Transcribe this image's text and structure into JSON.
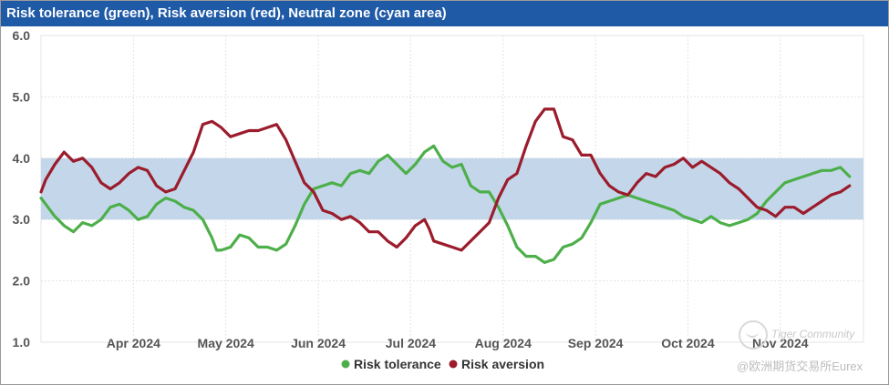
{
  "chart_data": {
    "type": "line",
    "title": "Risk tolerance (green), Risk aversion (red), Neutral zone (cyan area)",
    "xlabel": "",
    "ylabel": "",
    "ylim": [
      1.0,
      6.0
    ],
    "yticks": [
      "1.0",
      "2.0",
      "3.0",
      "4.0",
      "5.0",
      "6.0"
    ],
    "xlim": [
      0,
      8.9
    ],
    "xtick_labels": [
      "Apr 2024",
      "May 2024",
      "Jun 2024",
      "Jul 2024",
      "Aug 2024",
      "Sep 2024",
      "Oct 2024",
      "Nov 2024"
    ],
    "xtick_positions": [
      1,
      2,
      3,
      4,
      5,
      6,
      7,
      8
    ],
    "neutral_zone": [
      3.0,
      4.0
    ],
    "colors": {
      "tolerance": "#4daf4a",
      "aversion": "#9b1c2c",
      "zone": "#c4d7ea",
      "title_bg": "#1f5aa6"
    },
    "legend": {
      "position": "bottom",
      "entries": [
        "Risk tolerance",
        "Risk aversion"
      ]
    },
    "series": [
      {
        "name": "Risk tolerance",
        "x": [
          0,
          0.05,
          0.15,
          0.25,
          0.35,
          0.45,
          0.55,
          0.65,
          0.75,
          0.85,
          0.95,
          1.05,
          1.15,
          1.25,
          1.35,
          1.45,
          1.55,
          1.65,
          1.75,
          1.85,
          1.9,
          1.95,
          2.05,
          2.15,
          2.25,
          2.35,
          2.45,
          2.55,
          2.65,
          2.75,
          2.85,
          2.95,
          3.05,
          3.15,
          3.25,
          3.35,
          3.45,
          3.55,
          3.65,
          3.75,
          3.85,
          3.95,
          4.05,
          4.15,
          4.2,
          4.25,
          4.35,
          4.45,
          4.55,
          4.65,
          4.75,
          4.85,
          4.95,
          5.05,
          5.15,
          5.25,
          5.35,
          5.45,
          5.55,
          5.65,
          5.75,
          5.85,
          5.95,
          6.05,
          6.15,
          6.25,
          6.35,
          6.45,
          6.55,
          6.65,
          6.75,
          6.85,
          6.95,
          7.05,
          7.15,
          7.25,
          7.35,
          7.45,
          7.55,
          7.65,
          7.75,
          7.85,
          7.95,
          8.05,
          8.15,
          8.25,
          8.35,
          8.45,
          8.55,
          8.65,
          8.75
        ],
        "values": [
          3.35,
          3.25,
          3.05,
          2.9,
          2.8,
          2.95,
          2.9,
          3.0,
          3.2,
          3.25,
          3.15,
          3.0,
          3.05,
          3.25,
          3.35,
          3.3,
          3.2,
          3.15,
          3.0,
          2.7,
          2.5,
          2.5,
          2.55,
          2.75,
          2.7,
          2.55,
          2.55,
          2.5,
          2.6,
          2.9,
          3.25,
          3.5,
          3.55,
          3.6,
          3.55,
          3.75,
          3.8,
          3.75,
          3.95,
          4.05,
          3.9,
          3.75,
          3.9,
          4.1,
          4.15,
          4.2,
          3.95,
          3.85,
          3.9,
          3.55,
          3.45,
          3.45,
          3.2,
          2.9,
          2.55,
          2.4,
          2.4,
          2.3,
          2.35,
          2.55,
          2.6,
          2.7,
          2.95,
          3.25,
          3.3,
          3.35,
          3.4,
          3.35,
          3.3,
          3.25,
          3.2,
          3.15,
          3.05,
          3.0,
          2.95,
          3.05,
          2.95,
          2.9,
          2.95,
          3.0,
          3.1,
          3.3,
          3.45,
          3.6,
          3.65,
          3.7,
          3.75,
          3.8,
          3.8,
          3.85,
          3.7
        ]
      },
      {
        "name": "Risk aversion",
        "x": [
          0,
          0.05,
          0.15,
          0.25,
          0.35,
          0.45,
          0.55,
          0.65,
          0.75,
          0.85,
          0.95,
          1.05,
          1.15,
          1.25,
          1.35,
          1.45,
          1.55,
          1.65,
          1.75,
          1.85,
          1.9,
          1.95,
          2.05,
          2.15,
          2.25,
          2.35,
          2.45,
          2.55,
          2.65,
          2.75,
          2.85,
          2.95,
          3.05,
          3.15,
          3.25,
          3.35,
          3.45,
          3.55,
          3.65,
          3.75,
          3.85,
          3.95,
          4.05,
          4.15,
          4.2,
          4.25,
          4.35,
          4.45,
          4.55,
          4.65,
          4.75,
          4.85,
          4.95,
          5.05,
          5.15,
          5.25,
          5.35,
          5.45,
          5.55,
          5.65,
          5.75,
          5.85,
          5.95,
          6.05,
          6.15,
          6.25,
          6.35,
          6.45,
          6.55,
          6.65,
          6.75,
          6.85,
          6.95,
          7.05,
          7.15,
          7.25,
          7.35,
          7.45,
          7.55,
          7.65,
          7.75,
          7.85,
          7.95,
          8.05,
          8.15,
          8.25,
          8.35,
          8.45,
          8.55,
          8.65,
          8.75
        ],
        "values": [
          3.45,
          3.65,
          3.9,
          4.1,
          3.95,
          4.0,
          3.85,
          3.6,
          3.5,
          3.6,
          3.75,
          3.85,
          3.8,
          3.55,
          3.45,
          3.5,
          3.8,
          4.1,
          4.55,
          4.6,
          4.55,
          4.5,
          4.35,
          4.4,
          4.45,
          4.45,
          4.5,
          4.55,
          4.3,
          3.95,
          3.6,
          3.45,
          3.15,
          3.1,
          3.0,
          3.05,
          2.95,
          2.8,
          2.8,
          2.65,
          2.55,
          2.7,
          2.9,
          3.0,
          2.85,
          2.65,
          2.6,
          2.55,
          2.5,
          2.65,
          2.8,
          2.95,
          3.35,
          3.65,
          3.75,
          4.2,
          4.6,
          4.8,
          4.8,
          4.35,
          4.3,
          4.05,
          4.05,
          3.75,
          3.55,
          3.45,
          3.4,
          3.6,
          3.75,
          3.7,
          3.85,
          3.9,
          4.0,
          3.85,
          3.95,
          3.85,
          3.75,
          3.6,
          3.5,
          3.35,
          3.2,
          3.15,
          3.05,
          3.2,
          3.2,
          3.1,
          3.2,
          3.3,
          3.4,
          3.45,
          3.55
        ]
      }
    ]
  },
  "watermark": {
    "line1": "Tiger Community",
    "line2": "@欧洲期货交易所Eurex"
  }
}
